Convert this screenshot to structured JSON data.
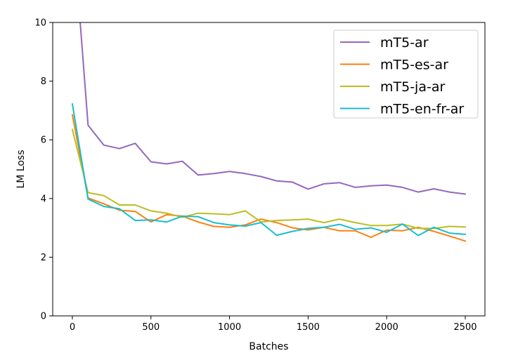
{
  "chart_data": {
    "type": "line",
    "xlabel": "Batches",
    "ylabel": "LM Loss",
    "xlim": [
      -125,
      2625
    ],
    "ylim": [
      0,
      10
    ],
    "xticks": [
      0,
      500,
      1000,
      1500,
      2000,
      2500
    ],
    "yticks": [
      0,
      2,
      4,
      6,
      8,
      10
    ],
    "legend_position": "top-right",
    "grid": false,
    "x": [
      0,
      100,
      200,
      300,
      400,
      500,
      600,
      700,
      800,
      900,
      1000,
      1100,
      1200,
      1300,
      1400,
      1500,
      1600,
      1700,
      1800,
      1900,
      2000,
      2100,
      2200,
      2300,
      2400,
      2500
    ],
    "series": [
      {
        "name": "mT5-ar",
        "color": "#9467bd",
        "x": [
          50,
          100,
          200,
          300,
          400,
          500,
          600,
          700,
          800,
          900,
          1000,
          1100,
          1200,
          1300,
          1400,
          1500,
          1600,
          1700,
          1800,
          1900,
          2000,
          2100,
          2200,
          2300,
          2400,
          2500
        ],
        "values": [
          10.0,
          6.5,
          5.82,
          5.7,
          5.88,
          5.25,
          5.18,
          5.27,
          4.8,
          4.85,
          4.92,
          4.85,
          4.75,
          4.6,
          4.56,
          4.32,
          4.5,
          4.54,
          4.38,
          4.43,
          4.46,
          4.38,
          4.22,
          4.33,
          4.22,
          4.15
        ]
      },
      {
        "name": "mT5-es-ar",
        "color": "#ff7f0e",
        "values": [
          6.85,
          4.02,
          3.82,
          3.6,
          3.56,
          3.2,
          3.45,
          3.4,
          3.2,
          3.05,
          3.02,
          3.1,
          3.3,
          3.18,
          3.0,
          2.93,
          3.02,
          2.9,
          2.9,
          2.68,
          2.92,
          2.9,
          3.02,
          2.88,
          2.72,
          2.55
        ]
      },
      {
        "name": "mT5-ja-ar",
        "color": "#bcbd22",
        "values": [
          6.35,
          4.2,
          4.1,
          3.78,
          3.78,
          3.58,
          3.5,
          3.36,
          3.5,
          3.48,
          3.45,
          3.58,
          3.2,
          3.25,
          3.27,
          3.3,
          3.18,
          3.3,
          3.18,
          3.08,
          3.08,
          3.13,
          2.98,
          2.98,
          3.05,
          3.03
        ]
      },
      {
        "name": "mT5-en-fr-ar",
        "color": "#17becf",
        "values": [
          7.22,
          3.98,
          3.73,
          3.65,
          3.25,
          3.27,
          3.2,
          3.4,
          3.38,
          3.18,
          3.1,
          3.06,
          3.18,
          2.75,
          2.88,
          2.98,
          3.02,
          3.12,
          2.95,
          3.0,
          2.85,
          3.13,
          2.74,
          3.02,
          2.82,
          2.78
        ]
      }
    ]
  }
}
